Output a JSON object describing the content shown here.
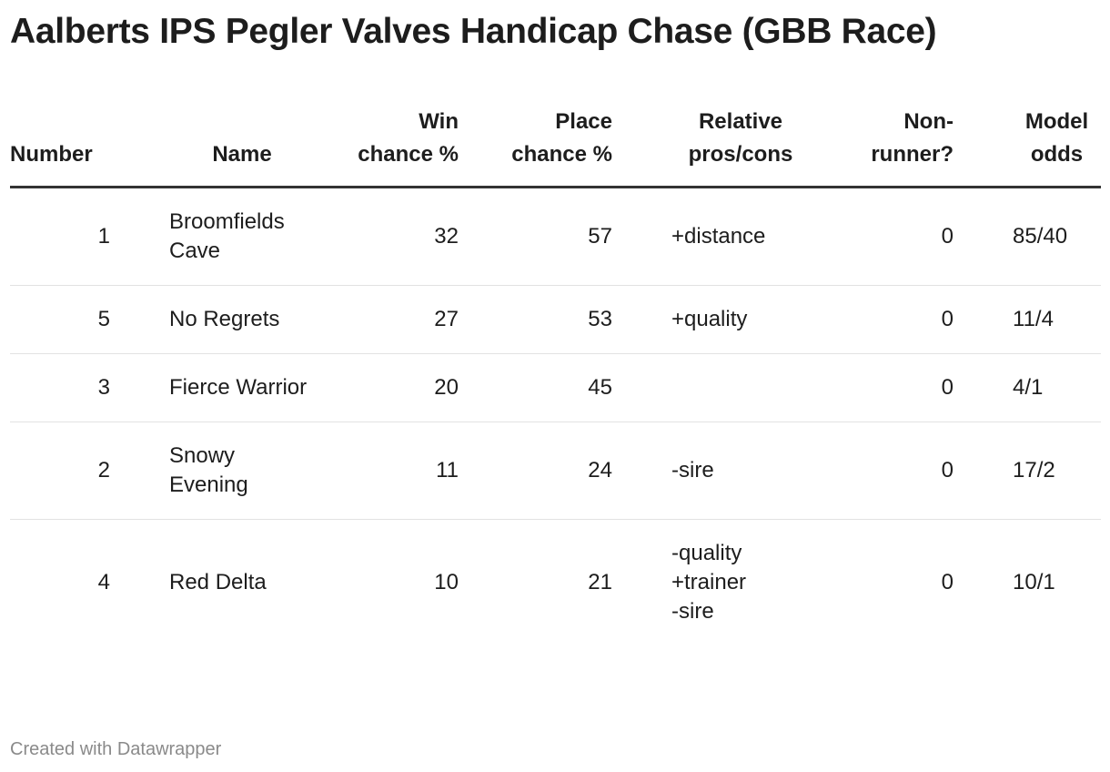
{
  "header": {
    "title": "Aalberts IPS Pegler Valves Handicap Chase (GBB Race)"
  },
  "table": {
    "columns": [
      "Number",
      "Name",
      "Win chance %",
      "Place chance %",
      "Relative pros/cons",
      "Non-runner?",
      "Model odds"
    ],
    "rows": [
      [
        1,
        "Broomfields Cave",
        32,
        57,
        "+distance",
        0,
        "85/40"
      ],
      [
        5,
        "No Regrets",
        27,
        53,
        "+quality",
        0,
        "11/4"
      ],
      [
        3,
        "Fierce Warrior",
        20,
        45,
        null,
        0,
        "4/1"
      ],
      [
        2,
        "Snowy Evening",
        11,
        24,
        "-sire",
        0,
        "17/2"
      ],
      [
        4,
        "Red Delta",
        10,
        21,
        "-quality\n+trainer\n-sire",
        0,
        "10/1"
      ]
    ]
  },
  "footer": {
    "credit": "Created with Datawrapper"
  }
}
